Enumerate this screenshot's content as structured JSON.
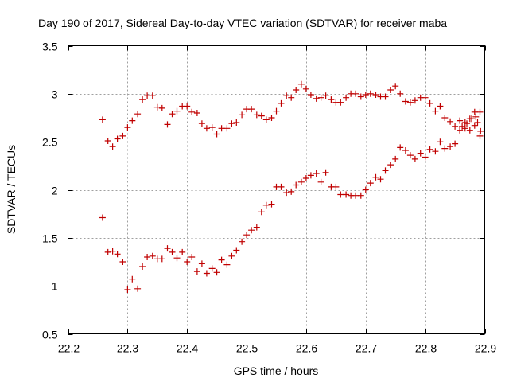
{
  "chart_data": {
    "type": "scatter",
    "title": "Day 190 of 2017, Sidereal Day-to-day VTEC variation (SDTVAR) for receiver maba",
    "xlabel": "GPS time / hours",
    "ylabel": "SDTVAR / TECUs",
    "xlim": [
      22.2,
      22.9
    ],
    "ylim": [
      0.5,
      3.5
    ],
    "xticks": [
      22.2,
      22.3,
      22.4,
      22.5,
      22.6,
      22.7,
      22.8,
      22.9
    ],
    "yticks": [
      0.5,
      1,
      1.5,
      2,
      2.5,
      3,
      3.5
    ],
    "xtick_labels": [
      "22.2",
      "22.3",
      "22.4",
      "22.5",
      "22.6",
      "22.7",
      "22.8",
      "22.9"
    ],
    "ytick_labels": [
      "0.5",
      "1",
      "1.5",
      "2",
      "2.5",
      "3",
      "3.5"
    ],
    "grid": true,
    "marker": "+",
    "color": "#c00000",
    "series": [
      {
        "name": "upper",
        "points": [
          [
            22.258,
            2.73
          ],
          [
            22.267,
            2.51
          ],
          [
            22.275,
            2.45
          ],
          [
            22.283,
            2.53
          ],
          [
            22.292,
            2.56
          ],
          [
            22.3,
            2.65
          ],
          [
            22.308,
            2.72
          ],
          [
            22.317,
            2.79
          ],
          [
            22.325,
            2.94
          ],
          [
            22.333,
            2.98
          ],
          [
            22.342,
            2.98
          ],
          [
            22.35,
            2.86
          ],
          [
            22.358,
            2.85
          ],
          [
            22.367,
            2.68
          ],
          [
            22.375,
            2.79
          ],
          [
            22.383,
            2.82
          ],
          [
            22.392,
            2.87
          ],
          [
            22.4,
            2.87
          ],
          [
            22.408,
            2.81
          ],
          [
            22.417,
            2.8
          ],
          [
            22.425,
            2.69
          ],
          [
            22.433,
            2.64
          ],
          [
            22.442,
            2.65
          ],
          [
            22.45,
            2.58
          ],
          [
            22.458,
            2.64
          ],
          [
            22.467,
            2.64
          ],
          [
            22.475,
            2.69
          ],
          [
            22.483,
            2.7
          ],
          [
            22.492,
            2.78
          ],
          [
            22.5,
            2.84
          ],
          [
            22.508,
            2.84
          ],
          [
            22.517,
            2.78
          ],
          [
            22.525,
            2.77
          ],
          [
            22.533,
            2.73
          ],
          [
            22.542,
            2.75
          ],
          [
            22.55,
            2.82
          ],
          [
            22.558,
            2.9
          ],
          [
            22.567,
            2.98
          ],
          [
            22.575,
            2.96
          ],
          [
            22.583,
            3.04
          ],
          [
            22.592,
            3.1
          ],
          [
            22.6,
            3.05
          ],
          [
            22.608,
            2.99
          ],
          [
            22.617,
            2.95
          ],
          [
            22.625,
            2.96
          ],
          [
            22.633,
            2.98
          ],
          [
            22.642,
            2.94
          ],
          [
            22.65,
            2.91
          ],
          [
            22.658,
            2.91
          ],
          [
            22.667,
            2.96
          ],
          [
            22.675,
            3.0
          ],
          [
            22.683,
            3.0
          ],
          [
            22.692,
            2.97
          ],
          [
            22.7,
            2.99
          ],
          [
            22.708,
            3.0
          ],
          [
            22.717,
            2.99
          ],
          [
            22.725,
            2.97
          ],
          [
            22.733,
            2.97
          ],
          [
            22.742,
            3.04
          ],
          [
            22.75,
            3.08
          ],
          [
            22.758,
            3.0
          ],
          [
            22.767,
            2.92
          ],
          [
            22.775,
            2.91
          ],
          [
            22.783,
            2.93
          ],
          [
            22.792,
            2.96
          ],
          [
            22.8,
            2.96
          ],
          [
            22.808,
            2.9
          ],
          [
            22.817,
            2.82
          ],
          [
            22.825,
            2.87
          ],
          [
            22.833,
            2.75
          ],
          [
            22.842,
            2.71
          ],
          [
            22.85,
            2.66
          ],
          [
            22.858,
            2.72
          ],
          [
            22.867,
            2.7
          ],
          [
            22.875,
            2.74
          ],
          [
            22.883,
            2.81
          ],
          [
            22.892,
            2.81
          ]
        ]
      },
      {
        "name": "lower",
        "points": [
          [
            22.258,
            1.71
          ],
          [
            22.267,
            1.35
          ],
          [
            22.275,
            1.36
          ],
          [
            22.283,
            1.33
          ],
          [
            22.292,
            1.25
          ],
          [
            22.3,
            0.96
          ],
          [
            22.308,
            1.07
          ],
          [
            22.317,
            0.97
          ],
          [
            22.325,
            1.2
          ],
          [
            22.333,
            1.3
          ],
          [
            22.342,
            1.31
          ],
          [
            22.35,
            1.28
          ],
          [
            22.358,
            1.28
          ],
          [
            22.367,
            1.39
          ],
          [
            22.375,
            1.35
          ],
          [
            22.383,
            1.29
          ],
          [
            22.392,
            1.35
          ],
          [
            22.4,
            1.25
          ],
          [
            22.408,
            1.3
          ],
          [
            22.417,
            1.15
          ],
          [
            22.425,
            1.23
          ],
          [
            22.433,
            1.13
          ],
          [
            22.442,
            1.18
          ],
          [
            22.45,
            1.14
          ],
          [
            22.458,
            1.27
          ],
          [
            22.467,
            1.22
          ],
          [
            22.475,
            1.31
          ],
          [
            22.483,
            1.37
          ],
          [
            22.492,
            1.46
          ],
          [
            22.5,
            1.53
          ],
          [
            22.508,
            1.58
          ],
          [
            22.517,
            1.61
          ],
          [
            22.525,
            1.77
          ],
          [
            22.533,
            1.84
          ],
          [
            22.542,
            1.85
          ],
          [
            22.55,
            2.03
          ],
          [
            22.558,
            2.03
          ],
          [
            22.567,
            1.97
          ],
          [
            22.575,
            1.98
          ],
          [
            22.583,
            2.05
          ],
          [
            22.592,
            2.08
          ],
          [
            22.6,
            2.12
          ],
          [
            22.608,
            2.15
          ],
          [
            22.617,
            2.17
          ],
          [
            22.625,
            2.08
          ],
          [
            22.633,
            2.18
          ],
          [
            22.642,
            2.03
          ],
          [
            22.65,
            2.03
          ],
          [
            22.658,
            1.95
          ],
          [
            22.667,
            1.95
          ],
          [
            22.675,
            1.94
          ],
          [
            22.683,
            1.94
          ],
          [
            22.692,
            1.94
          ],
          [
            22.7,
            2.0
          ],
          [
            22.708,
            2.07
          ],
          [
            22.717,
            2.13
          ],
          [
            22.725,
            2.11
          ],
          [
            22.733,
            2.2
          ],
          [
            22.742,
            2.26
          ],
          [
            22.75,
            2.32
          ],
          [
            22.758,
            2.44
          ],
          [
            22.767,
            2.41
          ],
          [
            22.775,
            2.36
          ],
          [
            22.783,
            2.32
          ],
          [
            22.792,
            2.38
          ],
          [
            22.8,
            2.34
          ],
          [
            22.808,
            2.42
          ],
          [
            22.817,
            2.4
          ],
          [
            22.825,
            2.5
          ],
          [
            22.833,
            2.43
          ],
          [
            22.842,
            2.45
          ],
          [
            22.85,
            2.48
          ],
          [
            22.858,
            2.62
          ],
          [
            22.867,
            2.64
          ],
          [
            22.875,
            2.62
          ],
          [
            22.883,
            2.67
          ],
          [
            22.892,
            2.56
          ]
        ]
      },
      {
        "name": "edge",
        "points": [
          [
            22.862,
            2.66
          ],
          [
            22.87,
            2.69
          ],
          [
            22.878,
            2.74
          ],
          [
            22.885,
            2.76
          ],
          [
            22.888,
            2.7
          ],
          [
            22.893,
            2.61
          ]
        ]
      }
    ]
  }
}
